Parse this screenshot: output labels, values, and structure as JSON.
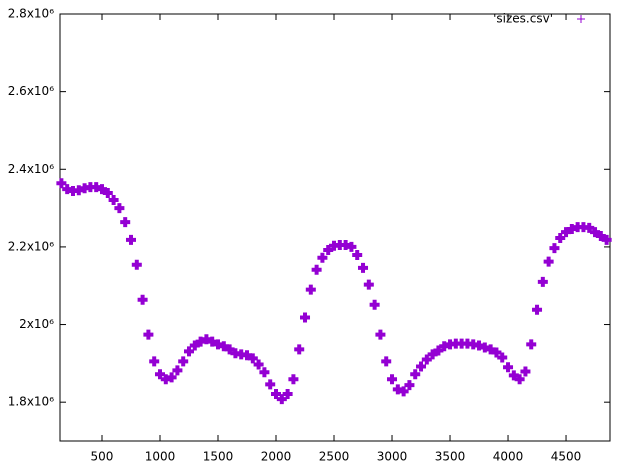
{
  "chart_data": {
    "type": "scatter",
    "xlim": [
      138,
      4879
    ],
    "ylim": [
      1700000,
      2800000
    ],
    "xticks": [
      500,
      1000,
      1500,
      2000,
      2500,
      3000,
      3500,
      4000,
      4500
    ],
    "yticks": [
      {
        "value": 1800000,
        "label": "1.8x10⁶"
      },
      {
        "value": 2000000,
        "label": "2x10⁶"
      },
      {
        "value": 2200000,
        "label": "2.2x10⁶"
      },
      {
        "value": 2400000,
        "label": "2.4x10⁶"
      },
      {
        "value": 2600000,
        "label": "2.6x10⁶"
      },
      {
        "value": 2800000,
        "label": "2.8x10⁶"
      }
    ],
    "legend": "top-right",
    "series": [
      {
        "name": "'sizes.csv'",
        "color": "#9400d3",
        "x": [
          150,
          200,
          250,
          300,
          350,
          400,
          450,
          500,
          550,
          600,
          650,
          700,
          750,
          800,
          850,
          900,
          950,
          1000,
          1050,
          1100,
          1150,
          1200,
          1250,
          1300,
          1350,
          1400,
          1450,
          1500,
          1550,
          1600,
          1650,
          1700,
          1750,
          1800,
          1850,
          1900,
          1950,
          2000,
          2050,
          2100,
          2150,
          2200,
          2250,
          2300,
          2350,
          2400,
          2450,
          2500,
          2550,
          2600,
          2650,
          2700,
          2750,
          2800,
          2850,
          2900,
          2950,
          3000,
          3050,
          3100,
          3150,
          3200,
          3250,
          3300,
          3350,
          3400,
          3450,
          3500,
          3550,
          3600,
          3650,
          3700,
          3750,
          3800,
          3850,
          3900,
          3950,
          4000,
          4050,
          4100,
          4150,
          4200,
          4250,
          4300,
          4350,
          4400,
          4450,
          4500,
          4550,
          4600,
          4650,
          4700,
          4750,
          4800,
          4850
        ],
        "values": [
          2364000,
          2349000,
          2344000,
          2346000,
          2351000,
          2354000,
          2354000,
          2349000,
          2339000,
          2321000,
          2300000,
          2264000,
          2218000,
          2154000,
          2064000,
          1974000,
          1905000,
          1872000,
          1859000,
          1864000,
          1882000,
          1905000,
          1931000,
          1946000,
          1956000,
          1962000,
          1956000,
          1949000,
          1944000,
          1936000,
          1926000,
          1923000,
          1921000,
          1913000,
          1897000,
          1877000,
          1846000,
          1821000,
          1808000,
          1821000,
          1859000,
          1936000,
          2018000,
          2090000,
          2141000,
          2172000,
          2192000,
          2203000,
          2205000,
          2205000,
          2200000,
          2179000,
          2146000,
          2103000,
          2051000,
          1974000,
          1905000,
          1859000,
          1833000,
          1828000,
          1844000,
          1872000,
          1892000,
          1910000,
          1923000,
          1933000,
          1944000,
          1949000,
          1951000,
          1951000,
          1951000,
          1949000,
          1946000,
          1941000,
          1936000,
          1928000,
          1915000,
          1890000,
          1869000,
          1859000,
          1879000,
          1949000,
          2038000,
          2110000,
          2162000,
          2197000,
          2223000,
          2238000,
          2246000,
          2251000,
          2251000,
          2249000,
          2238000,
          2228000,
          2218000
        ]
      }
    ]
  }
}
